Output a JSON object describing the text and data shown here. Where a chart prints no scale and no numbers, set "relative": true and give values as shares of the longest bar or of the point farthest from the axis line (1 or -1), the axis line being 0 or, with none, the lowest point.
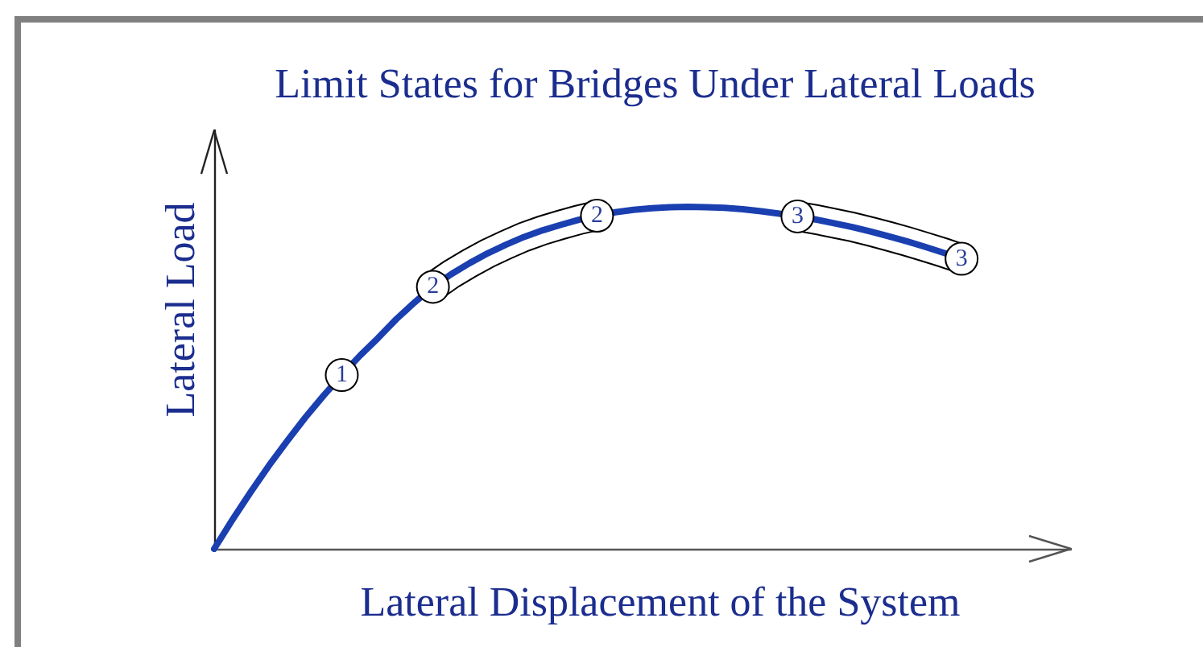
{
  "chart_data": {
    "type": "line",
    "title": "Limit States for Bridges Under Lateral Loads",
    "xlabel": "Lateral Displacement of the System",
    "ylabel": "Lateral Load",
    "relative": true,
    "categories": [
      null,
      null,
      null,
      null,
      null,
      null,
      null,
      null,
      null,
      null,
      null,
      null,
      null,
      null,
      null,
      null,
      null,
      null,
      null,
      null,
      null,
      null,
      null,
      null,
      null,
      null,
      null,
      null,
      null,
      null,
      null,
      null,
      null,
      null,
      null,
      null,
      null,
      null,
      null,
      null,
      null,
      null,
      null,
      null,
      null,
      null,
      null,
      null
    ],
    "values": [
      0,
      0.085,
      0.166,
      0.243,
      0.315,
      0.384,
      0.448,
      0.508,
      0.565,
      0.617,
      0.672,
      0.721,
      0.766,
      0.803,
      0.835,
      0.864,
      0.889,
      0.912,
      0.931,
      0.947,
      0.962,
      0.974,
      0.984,
      0.991,
      0.996,
      0.999,
      1,
      0.999,
      0.997,
      0.993,
      0.987,
      0.98,
      0.972,
      0.963,
      0.952,
      0.941,
      0.928,
      0.914,
      0.899,
      0.883,
      0.866,
      0.848,
      null,
      null,
      null,
      null,
      null,
      null
    ],
    "color": "#1a3fb0",
    "annotations": [
      {
        "text": "1",
        "y": 0.508
      },
      {
        "text": "2",
        "y": 0.766
      },
      {
        "text": "2",
        "y": 0.974
      },
      {
        "text": "3",
        "y": 0.972
      },
      {
        "text": "3",
        "y": 0.848
      }
    ]
  }
}
